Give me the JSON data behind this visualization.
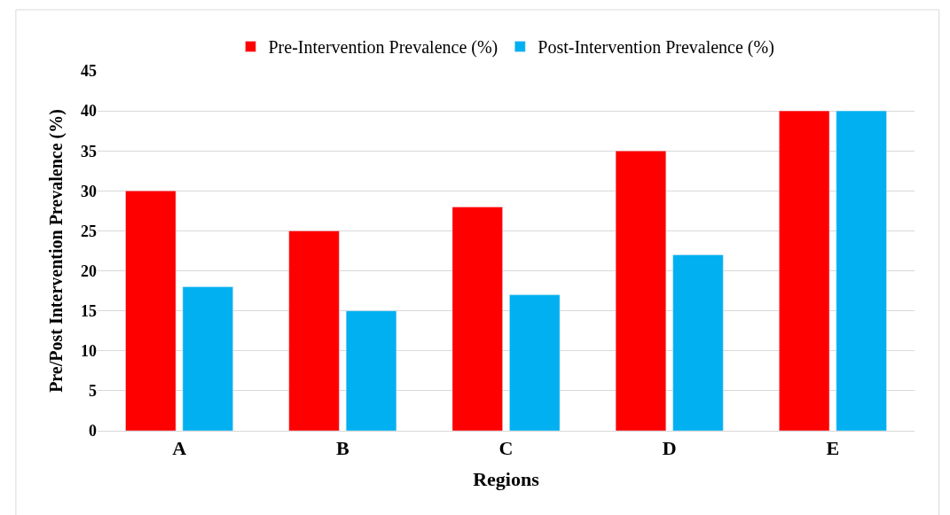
{
  "chart_data": {
    "type": "bar",
    "xlabel": "Regions",
    "ylabel": "Pre/Post Intervention Prevalence (%)",
    "categories": [
      "A",
      "B",
      "C",
      "D",
      "E"
    ],
    "series": [
      {
        "name": "Pre-Intervention Prevalence (%)",
        "color": "#ff0000",
        "values": [
          30,
          25,
          28,
          35,
          40
        ]
      },
      {
        "name": "Post-Intervention Prevalence (%)",
        "color": "#00b0f0",
        "values": [
          18,
          15,
          17,
          22,
          40
        ]
      }
    ],
    "ylim": [
      0,
      45
    ],
    "yticks": [
      0,
      5,
      10,
      15,
      20,
      25,
      30,
      35,
      40,
      45
    ],
    "grid": "y",
    "legend": "top"
  }
}
